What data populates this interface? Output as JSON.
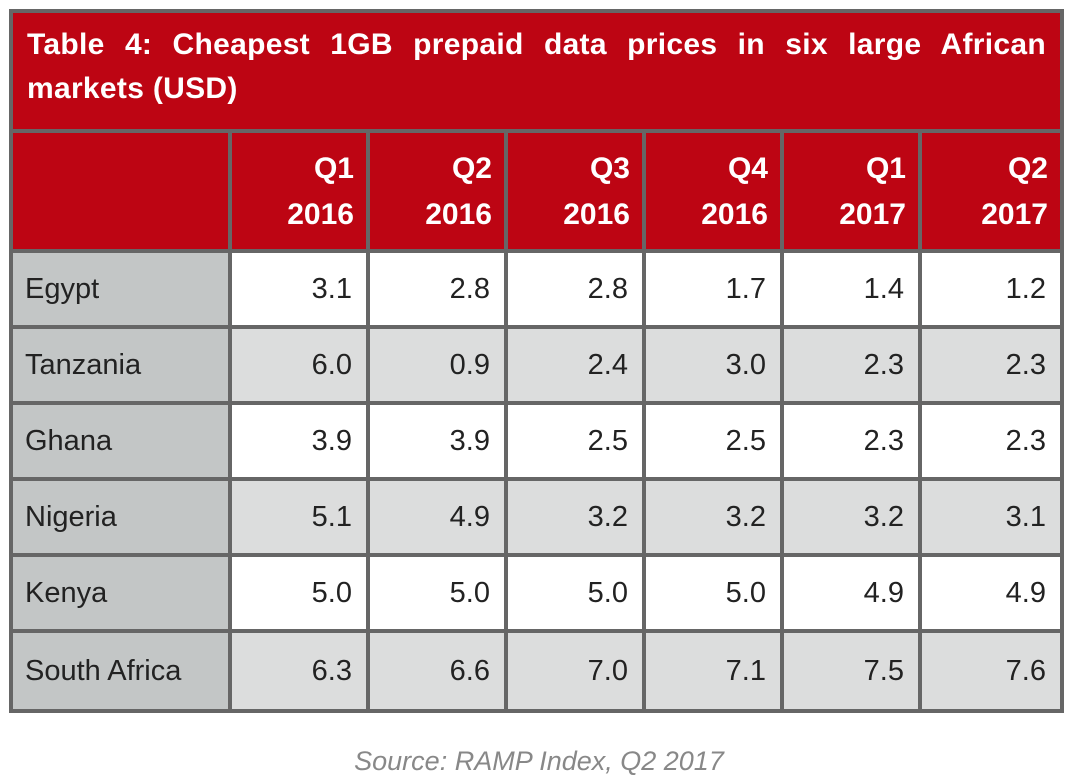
{
  "chart_data": {
    "type": "table",
    "title": "Table 4: Cheapest 1GB prepaid data prices in six large African markets (USD)",
    "columns": [
      {
        "quarter": "Q1",
        "year": "2016"
      },
      {
        "quarter": "Q2",
        "year": "2016"
      },
      {
        "quarter": "Q3",
        "year": "2016"
      },
      {
        "quarter": "Q4",
        "year": "2016"
      },
      {
        "quarter": "Q1",
        "year": "2017"
      },
      {
        "quarter": "Q2",
        "year": "2017"
      }
    ],
    "rows": [
      {
        "country": "Egypt",
        "values": [
          "3.1",
          "2.8",
          "2.8",
          "1.7",
          "1.4",
          "1.2"
        ]
      },
      {
        "country": "Tanzania",
        "values": [
          "6.0",
          "0.9",
          "2.4",
          "3.0",
          "2.3",
          "2.3"
        ]
      },
      {
        "country": "Ghana",
        "values": [
          "3.9",
          "3.9",
          "2.5",
          "2.5",
          "2.3",
          "2.3"
        ]
      },
      {
        "country": "Nigeria",
        "values": [
          "5.1",
          "4.9",
          "3.2",
          "3.2",
          "3.2",
          "3.1"
        ]
      },
      {
        "country": "Kenya",
        "values": [
          "5.0",
          "5.0",
          "5.0",
          "5.0",
          "4.9",
          "4.9"
        ]
      },
      {
        "country": "South Africa",
        "values": [
          "6.3",
          "6.6",
          "7.0",
          "7.1",
          "7.5",
          "7.6"
        ]
      }
    ],
    "source": "Source: RAMP Index, Q2 2017"
  },
  "colors": {
    "header_red": "#bd0513",
    "border_gray": "#666666",
    "label_gray": "#c3c6c6",
    "alt_row": "#dcdddd",
    "source_text": "#888888"
  }
}
